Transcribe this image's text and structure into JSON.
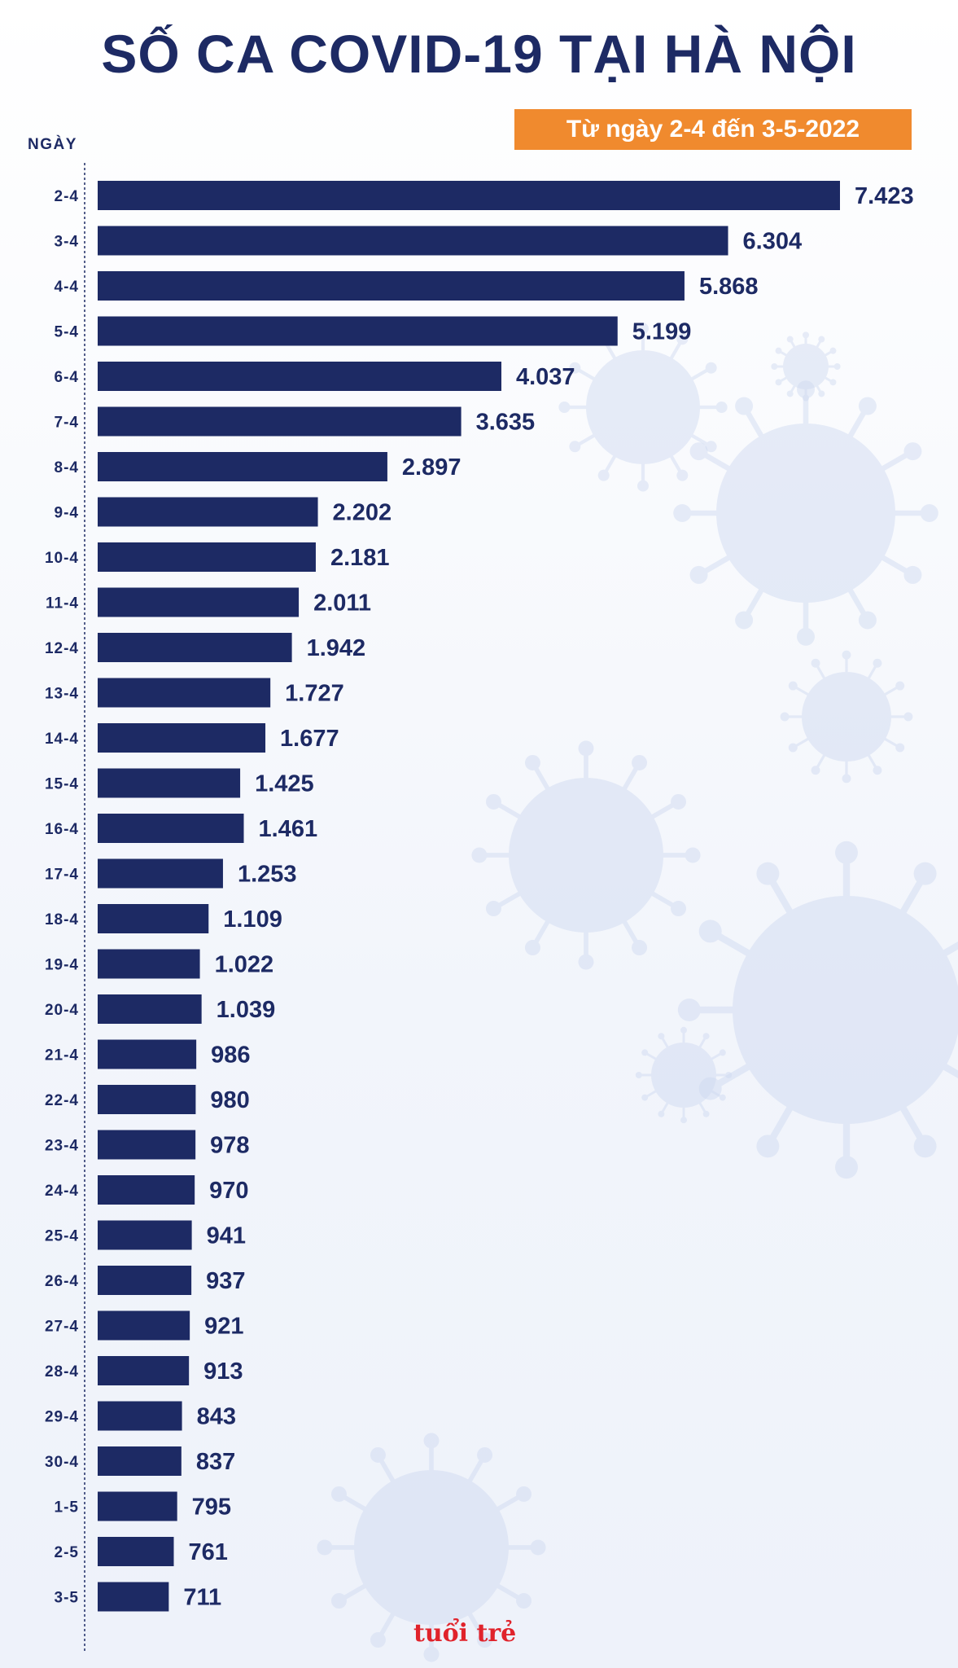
{
  "title": "SỐ CA COVID-19 TẠI HÀ NỘI",
  "subtitle": "Từ ngày 2-4 đến 3-5-2022",
  "logo_text": "tuổi trẻ",
  "colors": {
    "bar": "#1d2a64",
    "title": "#1d2a64",
    "badge": "#f08a2e",
    "virus": "#cdd8f0"
  },
  "chart_data": {
    "type": "bar",
    "orientation": "horizontal",
    "ylabel": "NGÀY",
    "categories": [
      "2-4",
      "3-4",
      "4-4",
      "5-4",
      "6-4",
      "7-4",
      "8-4",
      "9-4",
      "10-4",
      "11-4",
      "12-4",
      "13-4",
      "14-4",
      "15-4",
      "16-4",
      "17-4",
      "18-4",
      "19-4",
      "20-4",
      "21-4",
      "22-4",
      "23-4",
      "24-4",
      "25-4",
      "26-4",
      "27-4",
      "28-4",
      "29-4",
      "30-4",
      "1-5",
      "2-5",
      "3-5"
    ],
    "values": [
      7423,
      6304,
      5868,
      5199,
      4037,
      3635,
      2897,
      2202,
      2181,
      2011,
      1942,
      1727,
      1677,
      1425,
      1461,
      1253,
      1109,
      1022,
      1039,
      986,
      980,
      978,
      970,
      941,
      937,
      921,
      913,
      843,
      837,
      795,
      761,
      711
    ],
    "value_labels": [
      "7.423",
      "6.304",
      "5.868",
      "5.199",
      "4.037",
      "3.635",
      "2.897",
      "2.202",
      "2.181",
      "2.011",
      "1.942",
      "1.727",
      "1.677",
      "1.425",
      "1.461",
      "1.253",
      "1.109",
      "1.022",
      "1.039",
      "986",
      "980",
      "978",
      "970",
      "941",
      "937",
      "921",
      "913",
      "843",
      "837",
      "795",
      "761",
      "711"
    ],
    "xlim": [
      0,
      7423
    ],
    "grid": false,
    "legend": "none"
  }
}
